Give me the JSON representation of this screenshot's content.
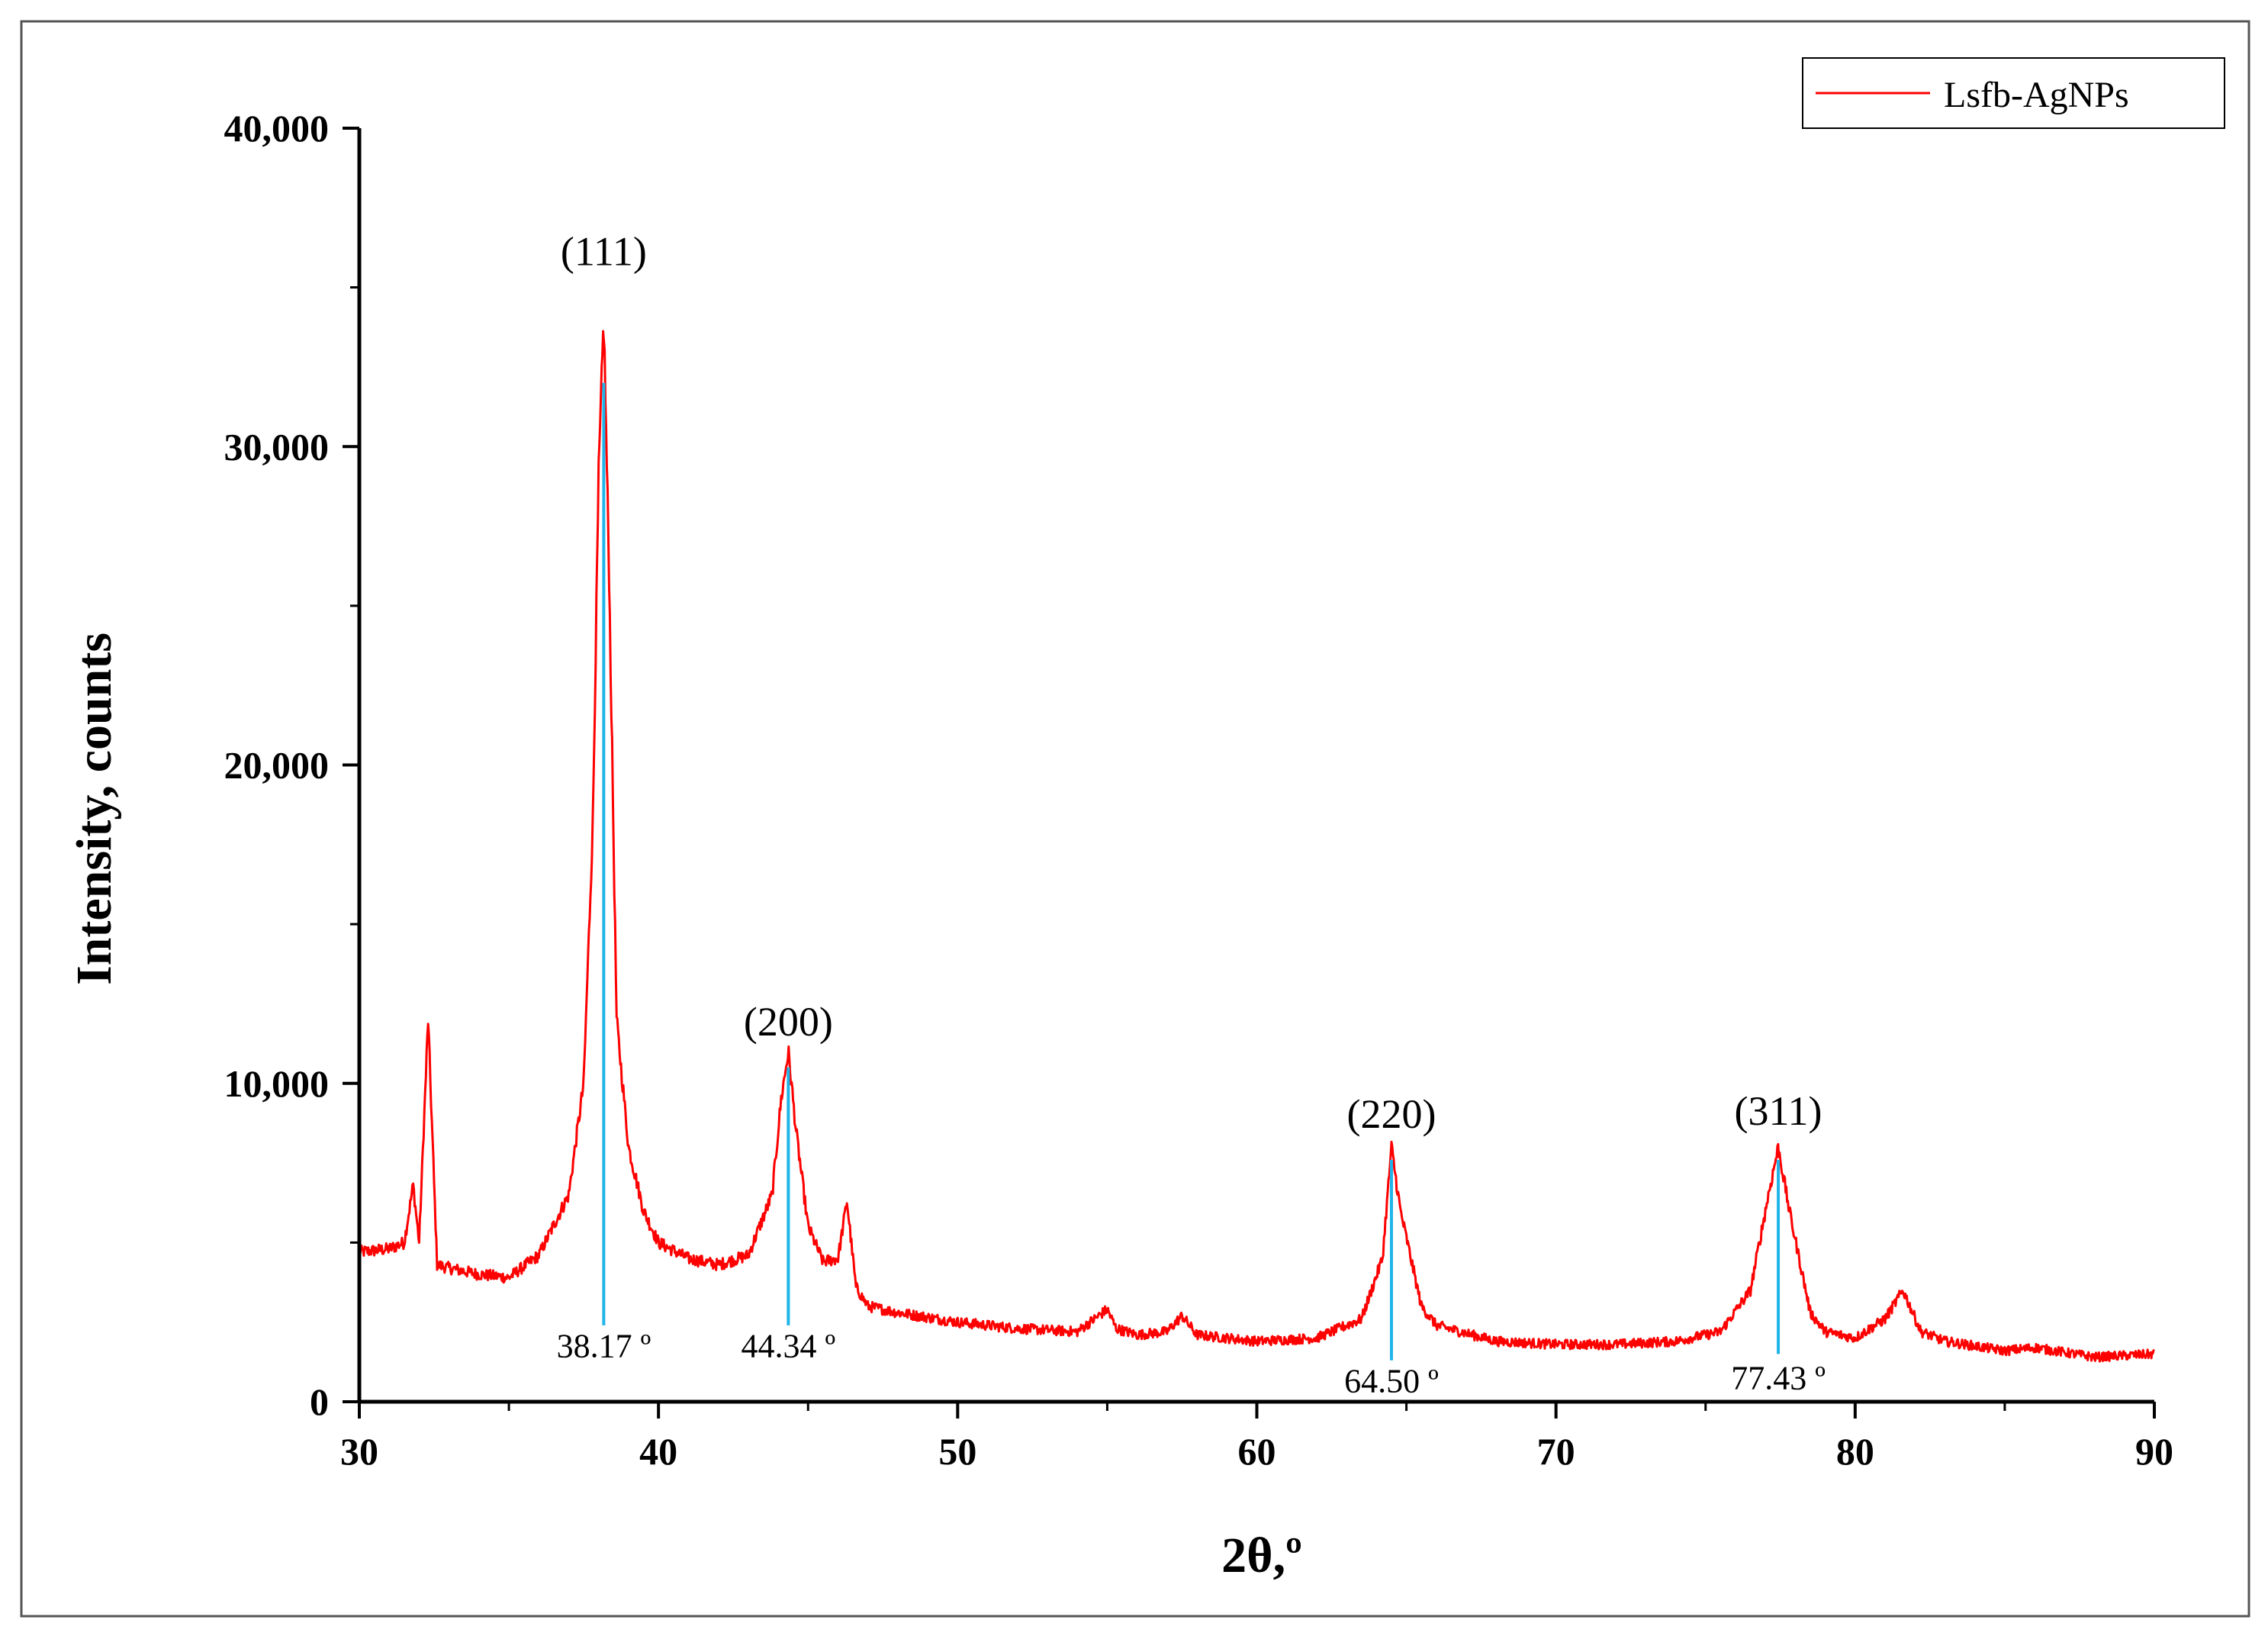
{
  "chart_data": {
    "type": "line",
    "xlabel": "2θ,º",
    "ylabel": "Intensity, counts",
    "xlim": [
      30,
      90
    ],
    "ylim": [
      0,
      40000
    ],
    "x_ticks": [
      30,
      40,
      50,
      60,
      70,
      80,
      90
    ],
    "y_ticks": [
      0,
      10000,
      20000,
      30000,
      40000
    ],
    "x_tick_labels": [
      "30",
      "40",
      "50",
      "60",
      "70",
      "80",
      "90"
    ],
    "y_tick_labels": [
      "0",
      "10,000",
      "20,000",
      "30,000",
      "40,000"
    ],
    "grid": false,
    "legend_position": "top-right",
    "series": [
      {
        "name": "Lsfb-AgNPs",
        "color": "#ff0000",
        "x": [
          30,
          31,
          31.5,
          31.8,
          32.0,
          32.3,
          32.6,
          33,
          34,
          35,
          36,
          37,
          37.5,
          37.8,
          38.0,
          38.17,
          38.35,
          38.6,
          39,
          39.5,
          40,
          41,
          42,
          43,
          43.8,
          44.1,
          44.34,
          44.6,
          45,
          45.5,
          46,
          46.3,
          46.6,
          47,
          48,
          50,
          52,
          54,
          55,
          55.3,
          56,
          57,
          57.5,
          58,
          60,
          62,
          63.5,
          64.2,
          64.5,
          64.8,
          65.5,
          66,
          68,
          70,
          72,
          74,
          75.5,
          76.5,
          77.1,
          77.43,
          77.8,
          78.5,
          79,
          80,
          81,
          81.6,
          82.2,
          83,
          85,
          86,
          88,
          90
        ],
        "values": [
          4700,
          4800,
          5000,
          6800,
          5000,
          12000,
          4300,
          4200,
          4000,
          3900,
          4600,
          6500,
          10000,
          18000,
          29000,
          34000,
          26000,
          12000,
          8000,
          6000,
          5000,
          4500,
          4300,
          4600,
          6500,
          9500,
          11000,
          8500,
          5500,
          4400,
          4500,
          6300,
          3600,
          3000,
          2800,
          2500,
          2300,
          2200,
          2900,
          2300,
          2100,
          2200,
          2700,
          2100,
          1900,
          2000,
          2600,
          4500,
          8000,
          6000,
          3000,
          2400,
          1900,
          1800,
          1800,
          1900,
          2200,
          3500,
          6500,
          8000,
          6000,
          2800,
          2200,
          2000,
          2600,
          3500,
          2200,
          1900,
          1600,
          1700,
          1400,
          1500
        ]
      }
    ],
    "annotations": [
      {
        "hkl": "(111)",
        "label": "38.17 º",
        "x": 38.17,
        "peak": 34000,
        "hkl_y": 35700,
        "line_top": 32000,
        "line_bottom": 2400,
        "label_y": 1400
      },
      {
        "hkl": "(200)",
        "label": "44.34 º",
        "x": 44.34,
        "peak": 11000,
        "hkl_y": 11500,
        "line_top": 10500,
        "line_bottom": 2400,
        "label_y": 1400
      },
      {
        "hkl": "(220)",
        "label": "64.50 º",
        "x": 64.5,
        "peak": 8000,
        "hkl_y": 8600,
        "line_top": 7600,
        "line_bottom": 1300,
        "label_y": 300
      },
      {
        "hkl": "(311)",
        "label": "77.43 º",
        "x": 77.43,
        "peak": 8000,
        "hkl_y": 8700,
        "line_top": 7600,
        "line_bottom": 1500,
        "label_y": 400
      }
    ],
    "marker_color": "#1fb5e8"
  }
}
